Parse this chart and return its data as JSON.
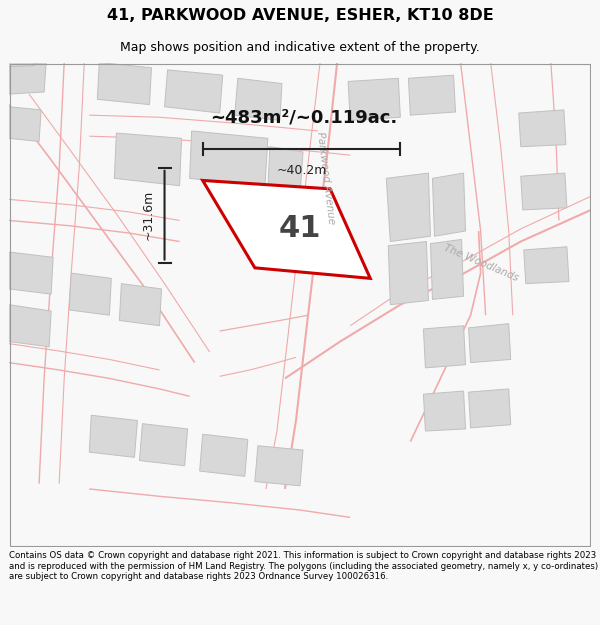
{
  "title": "41, PARKWOOD AVENUE, ESHER, KT10 8DE",
  "subtitle": "Map shows position and indicative extent of the property.",
  "footer": "Contains OS data © Crown copyright and database right 2021. This information is subject to Crown copyright and database rights 2023 and is reproduced with the permission of HM Land Registry. The polygons (including the associated geometry, namely x, y co-ordinates) are subject to Crown copyright and database rights 2023 Ordnance Survey 100026316.",
  "area_text": "~483m²/~0.119ac.",
  "width_label": "~40.2m",
  "height_label": "~31.6m",
  "bg_color": "#f8f8f8",
  "map_bg": "#ffffff",
  "road_line_color": "#f0aaaa",
  "building_fill": "#d8d8d8",
  "building_edge": "#c0c0c0",
  "prop_edge": "#cc0000",
  "dim_color": "#222222",
  "title_color": "#000000",
  "footer_color": "#000000",
  "street_label_color": "#aaaaaa"
}
